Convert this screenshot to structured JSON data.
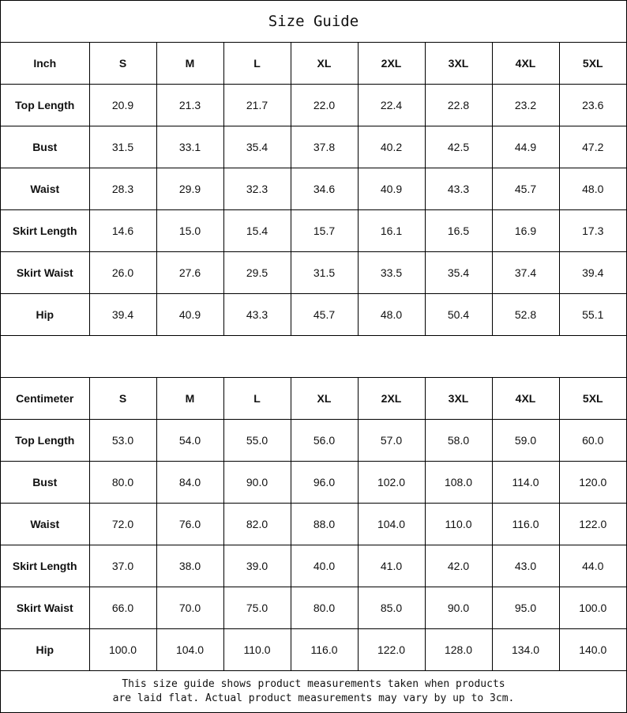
{
  "title": "Size Guide",
  "sizes": [
    "S",
    "M",
    "L",
    "XL",
    "2XL",
    "3XL",
    "4XL",
    "5XL"
  ],
  "tables": [
    {
      "unit": "Inch",
      "rows": [
        {
          "label": "Top Length",
          "values": [
            "20.9",
            "21.3",
            "21.7",
            "22.0",
            "22.4",
            "22.8",
            "23.2",
            "23.6"
          ]
        },
        {
          "label": "Bust",
          "values": [
            "31.5",
            "33.1",
            "35.4",
            "37.8",
            "40.2",
            "42.5",
            "44.9",
            "47.2"
          ]
        },
        {
          "label": "Waist",
          "values": [
            "28.3",
            "29.9",
            "32.3",
            "34.6",
            "40.9",
            "43.3",
            "45.7",
            "48.0"
          ]
        },
        {
          "label": "Skirt Length",
          "values": [
            "14.6",
            "15.0",
            "15.4",
            "15.7",
            "16.1",
            "16.5",
            "16.9",
            "17.3"
          ]
        },
        {
          "label": "Skirt Waist",
          "values": [
            "26.0",
            "27.6",
            "29.5",
            "31.5",
            "33.5",
            "35.4",
            "37.4",
            "39.4"
          ]
        },
        {
          "label": "Hip",
          "values": [
            "39.4",
            "40.9",
            "43.3",
            "45.7",
            "48.0",
            "50.4",
            "52.8",
            "55.1"
          ]
        }
      ]
    },
    {
      "unit": "Centimeter",
      "rows": [
        {
          "label": "Top Length",
          "values": [
            "53.0",
            "54.0",
            "55.0",
            "56.0",
            "57.0",
            "58.0",
            "59.0",
            "60.0"
          ]
        },
        {
          "label": "Bust",
          "values": [
            "80.0",
            "84.0",
            "90.0",
            "96.0",
            "102.0",
            "108.0",
            "114.0",
            "120.0"
          ]
        },
        {
          "label": "Waist",
          "values": [
            "72.0",
            "76.0",
            "82.0",
            "88.0",
            "104.0",
            "110.0",
            "116.0",
            "122.0"
          ]
        },
        {
          "label": "Skirt Length",
          "values": [
            "37.0",
            "38.0",
            "39.0",
            "40.0",
            "41.0",
            "42.0",
            "43.0",
            "44.0"
          ]
        },
        {
          "label": "Skirt Waist",
          "values": [
            "66.0",
            "70.0",
            "75.0",
            "80.0",
            "85.0",
            "90.0",
            "95.0",
            "100.0"
          ]
        },
        {
          "label": "Hip",
          "values": [
            "100.0",
            "104.0",
            "110.0",
            "116.0",
            "122.0",
            "128.0",
            "134.0",
            "140.0"
          ]
        }
      ]
    }
  ],
  "footer": {
    "line1": "This size guide shows product measurements taken when products",
    "line2": "are laid flat. Actual product measurements may vary by up to 3cm."
  }
}
